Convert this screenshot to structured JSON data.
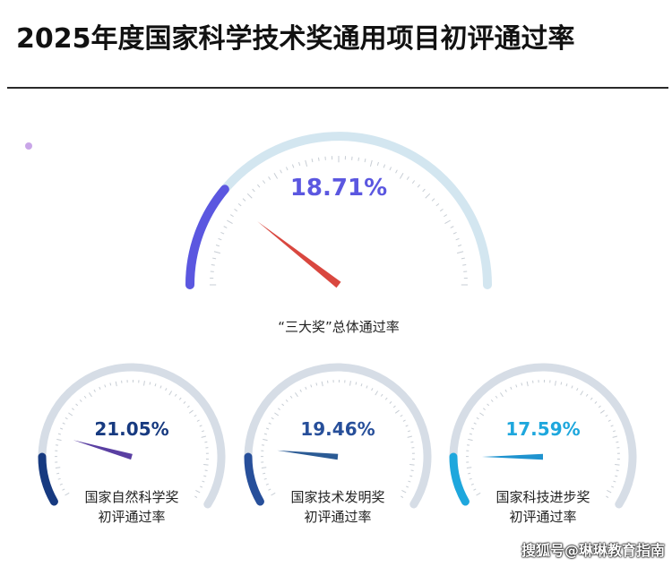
{
  "title": "2025年度国家科学技术奖通用项目初评通过率",
  "watermark": "搜狐号@琳琳教育指南",
  "chart_data": [
    {
      "type": "gauge",
      "value": 18.71,
      "value_label": "18.71%",
      "label_lines": [
        "“三大奖”总体通过率"
      ],
      "color": "#5b57e0",
      "needle_color": "#d9473f",
      "track_color": "#d3e6f0"
    },
    {
      "type": "gauge",
      "value": 21.05,
      "value_label": "21.05%",
      "label_lines": [
        "国家自然科学奖",
        "初评通过率"
      ],
      "color": "#173a80",
      "needle_color": "#5a3fa2",
      "track_color": "#d6dde6"
    },
    {
      "type": "gauge",
      "value": 19.46,
      "value_label": "19.46%",
      "label_lines": [
        "国家技术发明奖",
        "初评通过率"
      ],
      "color": "#274f9a",
      "needle_color": "#2b5b95",
      "track_color": "#d6dde6"
    },
    {
      "type": "gauge",
      "value": 17.59,
      "value_label": "17.59%",
      "label_lines": [
        "国家科技进步奖",
        "初评通过率"
      ],
      "color": "#1ea7dd",
      "needle_color": "#1f93cf",
      "track_color": "#d6dde6"
    }
  ]
}
